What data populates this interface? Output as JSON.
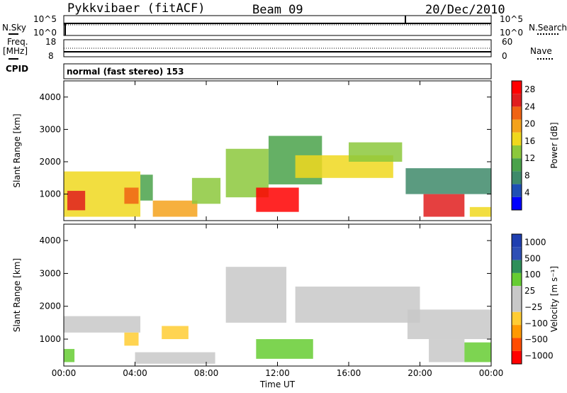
{
  "header": {
    "radar": "Pykkvibaer (fitACF)",
    "beam": "Beam 09",
    "date": "20/Dec/2010"
  },
  "top_panel": {
    "left_label": "N.Sky",
    "right_label": "N.Search",
    "left_ticks": [
      "10^5",
      "10^0"
    ],
    "right_ticks": [
      "10^5",
      "10^0"
    ]
  },
  "freq_panel": {
    "left_label_1": "Freq.",
    "left_label_2": "[MHz]",
    "right_label": "Nave",
    "left_ticks": [
      "18",
      "8"
    ],
    "right_ticks": [
      "60",
      "0"
    ]
  },
  "cpid": {
    "label": "CPID",
    "value": "normal (fast stereo) 153"
  },
  "colors": {
    "power": [
      "#0000ff",
      "#1f4fb4",
      "#3e8a6a",
      "#4aa24a",
      "#8cc83c",
      "#f0d81e",
      "#f4a21c",
      "#f06414",
      "#e01e1e",
      "#ff0000"
    ],
    "velocity": [
      "#ff0000",
      "#ff4c00",
      "#ff9900",
      "#ffcc33",
      "#c8c8c8",
      "#c8c8c8",
      "#66cc33",
      "#2f8f5a",
      "#2e4fb5",
      "#1f3fb0"
    ]
  },
  "chart_data": [
    {
      "type": "heatmap",
      "title": "",
      "ylabel": "Slant Range [km]",
      "xlabel": "",
      "x_range_hours": [
        0,
        24
      ],
      "ylim": [
        180,
        4500
      ],
      "yticks": [
        1000,
        2000,
        3000,
        4000
      ],
      "xticks": [
        "00:00",
        "04:00",
        "08:00",
        "12:00",
        "16:00",
        "20:00",
        "00:00"
      ],
      "colorbar": {
        "label": "Power [dB]",
        "ticks": [
          "4",
          "8",
          "12",
          "16",
          "20",
          "24",
          "28"
        ],
        "range": [
          0,
          30
        ]
      },
      "regions": [
        {
          "t": [
            0.0,
            4.3
          ],
          "r": [
            300,
            1700
          ],
          "level": 17
        },
        {
          "t": [
            0.2,
            1.2
          ],
          "r": [
            500,
            1100
          ],
          "level": 24
        },
        {
          "t": [
            3.4,
            4.2
          ],
          "r": [
            700,
            1200
          ],
          "level": 22
        },
        {
          "t": [
            4.3,
            5.0
          ],
          "r": [
            800,
            1600
          ],
          "level": 10
        },
        {
          "t": [
            5.0,
            7.5
          ],
          "r": [
            300,
            800
          ],
          "level": 20
        },
        {
          "t": [
            7.2,
            8.8
          ],
          "r": [
            700,
            1500
          ],
          "level": 12
        },
        {
          "t": [
            9.1,
            11.5
          ],
          "r": [
            900,
            2400
          ],
          "level": 14
        },
        {
          "t": [
            10.8,
            13.2
          ],
          "r": [
            450,
            1200
          ],
          "level": 27
        },
        {
          "t": [
            11.5,
            14.5
          ],
          "r": [
            1300,
            2800
          ],
          "level": 9
        },
        {
          "t": [
            13.0,
            18.5
          ],
          "r": [
            1500,
            2200
          ],
          "level": 16
        },
        {
          "t": [
            16.0,
            19.0
          ],
          "r": [
            2000,
            2600
          ],
          "level": 14
        },
        {
          "t": [
            19.2,
            24.0
          ],
          "r": [
            1000,
            1800
          ],
          "level": 8
        },
        {
          "t": [
            20.2,
            22.5
          ],
          "r": [
            300,
            1000
          ],
          "level": 26
        },
        {
          "t": [
            22.8,
            24.0
          ],
          "r": [
            300,
            600
          ],
          "level": 15
        }
      ]
    },
    {
      "type": "heatmap",
      "title": "",
      "ylabel": "Slant Range [km]",
      "xlabel": "Time UT",
      "x_range_hours": [
        0,
        24
      ],
      "ylim": [
        180,
        4500
      ],
      "yticks": [
        1000,
        2000,
        3000,
        4000
      ],
      "xticks": [
        "00:00",
        "04:00",
        "08:00",
        "12:00",
        "16:00",
        "20:00",
        "00:00"
      ],
      "colorbar": {
        "label": "Velocity [m s⁻¹]",
        "ticks": [
          "1000",
          "500",
          "100",
          "25",
          "−25",
          "−100",
          "−500",
          "−1000"
        ],
        "range": [
          -1000,
          1000
        ]
      },
      "regions": [
        {
          "t": [
            0.0,
            4.3
          ],
          "r": [
            1200,
            1700
          ],
          "level": 0
        },
        {
          "t": [
            0.0,
            0.6
          ],
          "r": [
            300,
            700
          ],
          "level": 300
        },
        {
          "t": [
            3.4,
            4.2
          ],
          "r": [
            800,
            1200
          ],
          "level": -300
        },
        {
          "t": [
            4.0,
            8.5
          ],
          "r": [
            250,
            600
          ],
          "level": -110
        },
        {
          "t": [
            5.5,
            7.0
          ],
          "r": [
            1000,
            1400
          ],
          "level": -400
        },
        {
          "t": [
            9.1,
            12.5
          ],
          "r": [
            1500,
            3200
          ],
          "level": 0
        },
        {
          "t": [
            10.8,
            14.0
          ],
          "r": [
            400,
            1000
          ],
          "level": 300
        },
        {
          "t": [
            13.0,
            20.0
          ],
          "r": [
            1500,
            2600
          ],
          "level": 0
        },
        {
          "t": [
            19.3,
            24.0
          ],
          "r": [
            1000,
            1900
          ],
          "level": 0
        },
        {
          "t": [
            20.5,
            22.5
          ],
          "r": [
            300,
            1000
          ],
          "level": 10
        },
        {
          "t": [
            22.5,
            24.0
          ],
          "r": [
            300,
            900
          ],
          "level": 200
        }
      ]
    }
  ]
}
